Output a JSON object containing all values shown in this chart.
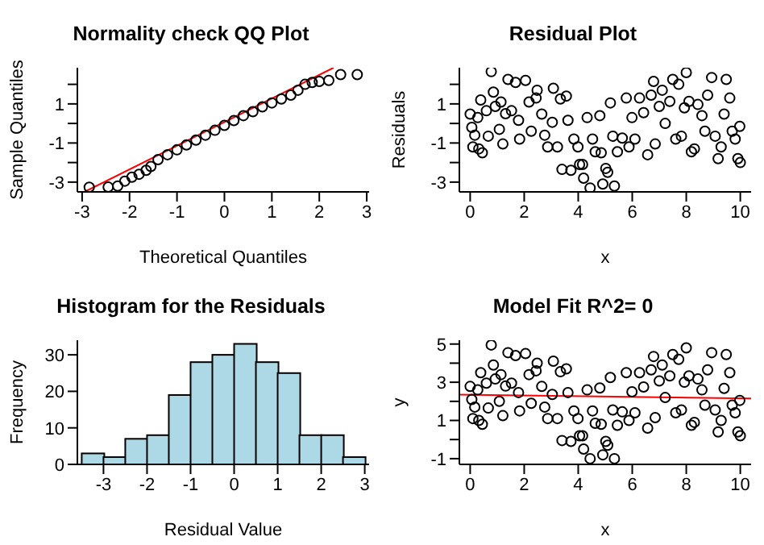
{
  "chart_data": [
    {
      "type": "scatter",
      "title": "Normality check QQ Plot",
      "xlabel": "Theoretical Quantiles",
      "ylabel": "Sample Quantiles",
      "xlim": [
        -3.1,
        3.05
      ],
      "ylim": [
        -3.5,
        2.85
      ],
      "xticks": [
        -3,
        -2,
        -1,
        0,
        1,
        2,
        3
      ],
      "yticks": [
        -3,
        {
          "value": -2,
          "label": null
        },
        -1,
        {
          "value": 0,
          "label": null
        },
        1,
        {
          "value": 2,
          "label": null
        }
      ],
      "series": [
        {
          "type": "scatter",
          "marker": "circle",
          "color": "#000000",
          "x": [
            -2.85,
            -2.45,
            -2.25,
            -2.1,
            -1.95,
            -1.8,
            -1.65,
            -1.55,
            -1.4,
            -1.2,
            -1.0,
            -0.8,
            -0.6,
            -0.4,
            -0.2,
            0,
            0.2,
            0.4,
            0.6,
            0.8,
            1.0,
            1.2,
            1.4,
            1.55,
            1.7,
            1.85,
            2.0,
            2.2,
            2.45,
            2.8
          ],
          "values": [
            -3.26,
            -3.25,
            -3.2,
            -2.95,
            -2.75,
            -2.6,
            -2.4,
            -2.2,
            -1.85,
            -1.6,
            -1.35,
            -1.1,
            -0.85,
            -0.6,
            -0.35,
            -0.1,
            0.15,
            0.4,
            0.6,
            0.85,
            1.05,
            1.25,
            1.45,
            1.7,
            2.0,
            2.1,
            2.15,
            2.2,
            2.5,
            2.5
          ]
        },
        {
          "type": "line",
          "marker": "none",
          "color": "#ff0000",
          "x": [
            -2.95,
            2.3
          ],
          "values": [
            -3.5,
            2.85
          ]
        }
      ]
    },
    {
      "type": "scatter",
      "title": "Residual Plot",
      "xlabel": "x",
      "ylabel": "Residuals",
      "xlim": [
        -0.4,
        10.4
      ],
      "ylim": [
        -3.5,
        2.85
      ],
      "xticks": [
        0,
        2,
        4,
        6,
        8,
        10
      ],
      "yticks": [
        -3,
        {
          "value": -2,
          "label": null
        },
        -1,
        {
          "value": 0,
          "label": null
        },
        1,
        {
          "value": 2,
          "label": null
        }
      ],
      "series": [
        {
          "type": "scatter",
          "marker": "circle",
          "color": "#000000",
          "x": [
            0,
            0.06,
            0.1,
            0.17,
            0.28,
            0.32,
            0.45,
            0.39,
            0.6,
            0.67,
            0.78,
            0.86,
            0.93,
            1.08,
            1.14,
            1.21,
            1.31,
            1.4,
            1.53,
            1.68,
            1.79,
            1.83,
            2.05,
            2.18,
            2.26,
            2.44,
            2.48,
            2.65,
            2.76,
            2.87,
            3.04,
            3.08,
            3.23,
            3.4,
            3.34,
            3.56,
            3.62,
            3.73,
            3.84,
            3.99,
            4.05,
            4.16,
            4.2,
            4.33,
            4.44,
            4.53,
            4.63,
            4.8,
            4.85,
            4.91,
            5.02,
            5.09,
            5.19,
            5.28,
            5.34,
            5.45,
            5.63,
            5.78,
            5.88,
            5.99,
            6.1,
            6.27,
            6.42,
            6.57,
            6.7,
            6.79,
            6.85,
            7.0,
            7.11,
            7.22,
            7.39,
            7.5,
            7.61,
            7.72,
            7.82,
            7.93,
            8.0,
            8.1,
            8.19,
            8.3,
            8.43,
            8.58,
            8.69,
            8.79,
            8.94,
            9.07,
            9.18,
            9.29,
            9.4,
            9.48,
            9.61,
            9.7,
            9.81,
            9.91,
            10.0,
            9.98
          ],
          "values": [
            0.48,
            -0.2,
            -1.2,
            -0.6,
            0.3,
            -1.3,
            -1.5,
            1.2,
            0.65,
            -0.65,
            2.65,
            1.6,
            0.87,
            -0.3,
            1.1,
            -1.05,
            0.5,
            2.25,
            0.65,
            2.1,
            0.16,
            -0.8,
            2.2,
            1.1,
            -0.4,
            1.3,
            1.7,
            0.48,
            -0.6,
            -1.2,
            0.06,
            1.8,
            -1.2,
            -2.35,
            1.25,
            1.4,
            0.16,
            -2.4,
            -0.8,
            -1.2,
            -2.1,
            -2.1,
            -2.8,
            0.3,
            -3.3,
            -0.8,
            -1.45,
            0.4,
            -1.5,
            -3.1,
            -2.3,
            -2.5,
            1.05,
            -0.65,
            -3.2,
            -1.45,
            -0.75,
            1.3,
            -1.2,
            0.3,
            -0.8,
            1.3,
            0.55,
            -1.6,
            1.45,
            2.15,
            -1.05,
            0.87,
            1.7,
            0.0,
            1.13,
            2.25,
            -0.8,
            2.0,
            -0.65,
            0.8,
            2.6,
            1.13,
            -1.45,
            -1.3,
            0.97,
            0.4,
            -0.4,
            1.45,
            2.35,
            -0.65,
            -1.8,
            -1.2,
            0.48,
            2.25,
            1.3,
            -0.4,
            -0.8,
            -1.8,
            -2.0,
            -0.15
          ]
        }
      ]
    },
    {
      "type": "histogram",
      "title": "Histogram for the Residuals",
      "xlabel": "Residual Value",
      "ylabel": "Frequency",
      "color": "#add8e6",
      "bins": [
        -3.5,
        -3,
        -2.5,
        -2,
        -1.5,
        -1,
        -0.5,
        0,
        0.5,
        1,
        1.5,
        2,
        2.5,
        3
      ],
      "values": [
        3,
        2,
        7,
        8,
        19,
        28,
        30,
        33,
        28,
        25,
        8,
        8,
        2
      ],
      "xlim": [
        -3.6,
        3.1
      ],
      "ylim": [
        0,
        34
      ],
      "xticks": [
        -3,
        -2,
        -1,
        0,
        1,
        2,
        3
      ],
      "yticks": [
        0,
        10,
        20,
        30
      ]
    },
    {
      "type": "scatter",
      "title": "Model Fit R^2= 0",
      "xlabel": "x",
      "ylabel": "y",
      "xlim": [
        -0.4,
        10.4
      ],
      "ylim": [
        -1.3,
        5.2
      ],
      "xticks": [
        0,
        2,
        4,
        6,
        8,
        10
      ],
      "yticks": [
        -1,
        {
          "value": 0,
          "label": null
        },
        1,
        {
          "value": 2,
          "label": null
        },
        3,
        {
          "value": 4,
          "label": null
        },
        5
      ],
      "series": [
        {
          "type": "scatter",
          "marker": "circle",
          "color": "#000000",
          "x": [
            0,
            0.06,
            0.1,
            0.17,
            0.28,
            0.32,
            0.45,
            0.39,
            0.6,
            0.67,
            0.78,
            0.86,
            0.93,
            1.08,
            1.14,
            1.21,
            1.31,
            1.4,
            1.53,
            1.68,
            1.79,
            1.83,
            2.05,
            2.18,
            2.26,
            2.44,
            2.48,
            2.65,
            2.76,
            2.87,
            3.04,
            3.08,
            3.23,
            3.4,
            3.34,
            3.56,
            3.62,
            3.73,
            3.84,
            3.99,
            4.05,
            4.16,
            4.2,
            4.33,
            4.44,
            4.53,
            4.63,
            4.8,
            4.85,
            4.91,
            5.02,
            5.09,
            5.19,
            5.28,
            5.34,
            5.45,
            5.63,
            5.78,
            5.88,
            5.99,
            6.1,
            6.27,
            6.42,
            6.57,
            6.7,
            6.79,
            6.85,
            7.0,
            7.11,
            7.22,
            7.39,
            7.5,
            7.61,
            7.72,
            7.82,
            7.93,
            8.0,
            8.1,
            8.19,
            8.3,
            8.43,
            8.58,
            8.69,
            8.79,
            8.94,
            9.07,
            9.18,
            9.29,
            9.4,
            9.48,
            9.61,
            9.7,
            9.81,
            9.91,
            10.0,
            9.98
          ],
          "values": [
            2.78,
            2.1,
            1.1,
            1.7,
            2.6,
            1.0,
            0.8,
            3.5,
            2.95,
            1.65,
            4.95,
            3.9,
            3.17,
            2.0,
            3.4,
            1.25,
            2.8,
            4.55,
            2.95,
            4.4,
            2.46,
            1.5,
            4.5,
            3.4,
            1.9,
            3.6,
            4.0,
            2.78,
            1.7,
            1.1,
            2.36,
            4.1,
            1.1,
            -0.05,
            3.55,
            3.7,
            2.46,
            -0.1,
            1.5,
            1.1,
            0.2,
            0.2,
            -0.5,
            2.6,
            -1.0,
            1.5,
            0.85,
            2.7,
            0.8,
            -0.8,
            -0.1,
            -0.3,
            3.25,
            1.55,
            -1.0,
            0.75,
            1.45,
            3.5,
            1.0,
            2.5,
            1.4,
            3.5,
            2.75,
            0.6,
            3.65,
            4.35,
            1.15,
            3.07,
            3.9,
            2.2,
            3.33,
            4.45,
            1.4,
            4.2,
            1.55,
            3.0,
            4.8,
            3.33,
            0.75,
            0.9,
            3.17,
            2.6,
            1.8,
            3.65,
            4.55,
            1.55,
            0.4,
            1.0,
            2.68,
            4.45,
            3.5,
            1.8,
            1.4,
            0.4,
            0.2,
            2.05
          ]
        },
        {
          "type": "line",
          "marker": "none",
          "color": "#ff0000",
          "x": [
            -0.4,
            10.4
          ],
          "values": [
            2.35,
            2.15
          ]
        }
      ]
    }
  ]
}
